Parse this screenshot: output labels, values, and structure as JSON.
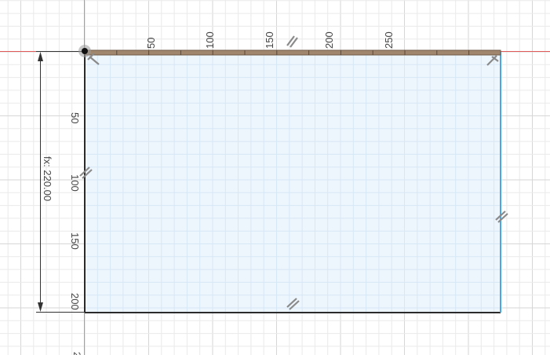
{
  "sketch": {
    "colors": {
      "grid_minor": "#eaeaea",
      "grid_major": "#d6d6d6",
      "axis_x": "#e15a5a",
      "axis_y": "#6cc56c",
      "profile_fill": "#eef6fd",
      "profile_edge": "#2b2b2b",
      "selected_edge": "#4aa8e0",
      "top_edge": "#a0866d",
      "constraint": "#8a8a8a",
      "dimension": "#333333"
    },
    "top_ruler_labels": [
      "50",
      "100",
      "150",
      "200",
      "250"
    ],
    "left_ruler_labels": [
      "50",
      "100",
      "150",
      "200"
    ],
    "dimension_text": "fx: 220.00",
    "rectangle": {
      "width": 325,
      "height": 205
    },
    "constraints": {
      "horizontal_top": "parallel-constraint-icon",
      "horizontal_bottom": "parallel-constraint-icon",
      "vertical_left": "parallel-constraint-icon",
      "vertical_right": "parallel-constraint-icon",
      "corner_top_left": "perpendicular-constraint-icon",
      "corner_top_right": "perpendicular-constraint-icon"
    }
  }
}
